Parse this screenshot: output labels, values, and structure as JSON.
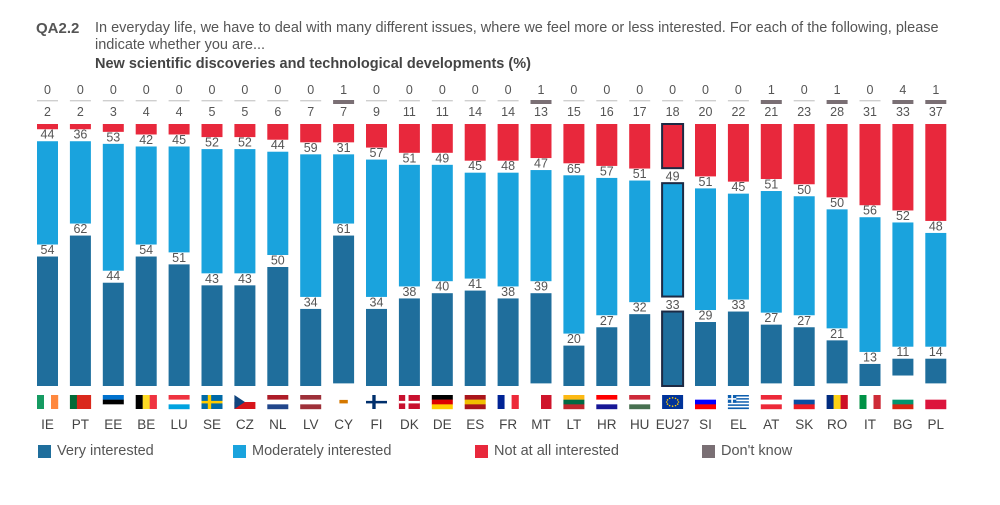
{
  "header": {
    "code": "QA2.2",
    "question": "In everyday life, we have to deal with many different issues, where we feel more or less interested. For each of the following, please indicate whether you are...",
    "title": "New scientific discoveries and technological developments (%)"
  },
  "colors": {
    "very": "#1f6e9c",
    "moderately": "#1aa3dd",
    "not": "#e8283c",
    "dontknow": "#7a6f74",
    "eu_border": "#1d2a44"
  },
  "legend": [
    {
      "label": "Very interested",
      "color": "#1f6e9c"
    },
    {
      "label": "Moderately interested",
      "color": "#1aa3dd"
    },
    {
      "label": "Not at all interested",
      "color": "#e8283c"
    },
    {
      "label": "Don't know",
      "color": "#7a6f74"
    }
  ],
  "chart_data": {
    "type": "bar",
    "stacked": true,
    "orientation": "vertical",
    "categories": [
      "IE",
      "PT",
      "EE",
      "BE",
      "LU",
      "SE",
      "CZ",
      "NL",
      "LV",
      "CY",
      "FI",
      "DK",
      "DE",
      "ES",
      "FR",
      "MT",
      "LT",
      "HR",
      "HU",
      "EU27",
      "SI",
      "EL",
      "AT",
      "SK",
      "RO",
      "IT",
      "BG",
      "PL"
    ],
    "highlight_category": "EU27",
    "series": [
      {
        "name": "Very interested",
        "values": [
          54,
          62,
          44,
          54,
          51,
          43,
          43,
          50,
          34,
          61,
          34,
          38,
          40,
          41,
          38,
          39,
          20,
          27,
          32,
          33,
          29,
          33,
          27,
          27,
          21,
          13,
          11,
          14
        ]
      },
      {
        "name": "Moderately interested",
        "values": [
          44,
          36,
          53,
          42,
          45,
          52,
          52,
          44,
          59,
          31,
          57,
          51,
          49,
          45,
          48,
          47,
          65,
          57,
          51,
          49,
          51,
          45,
          51,
          50,
          50,
          56,
          52,
          48
        ]
      },
      {
        "name": "Not at all interested",
        "values": [
          2,
          2,
          3,
          4,
          4,
          5,
          5,
          6,
          7,
          7,
          9,
          11,
          11,
          14,
          14,
          13,
          15,
          16,
          17,
          18,
          20,
          22,
          21,
          23,
          28,
          31,
          33,
          37
        ]
      },
      {
        "name": "Don't know",
        "values": [
          0,
          0,
          0,
          0,
          0,
          0,
          0,
          0,
          0,
          1,
          0,
          0,
          0,
          0,
          0,
          1,
          0,
          0,
          0,
          0,
          0,
          0,
          1,
          0,
          1,
          0,
          4,
          1
        ]
      }
    ],
    "ylim": [
      0,
      100
    ]
  }
}
